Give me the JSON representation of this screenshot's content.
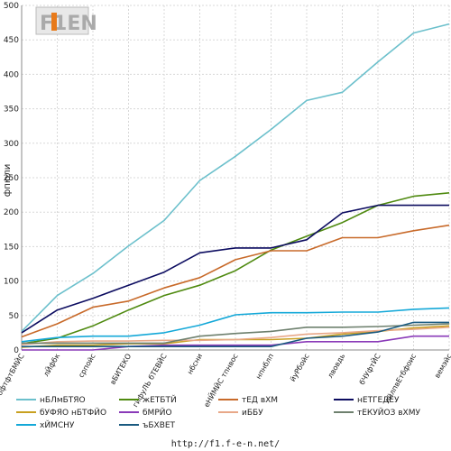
{
  "chart_data": {
    "type": "line",
    "xlabel": "",
    "ylabel": "фпюли",
    "ylim": [
      0,
      500
    ],
    "yticks": [
      0,
      50,
      100,
      150,
      200,
      250,
      300,
      350,
      400,
      450,
      500
    ],
    "grid": true,
    "legend_position": "bottom",
    "categories": [
      "бфтфтБМЙС",
      "лЙфбк",
      "српойс",
      "вБИТЕКО",
      "гйфуЛЬ бТЕВЙС",
      "нбсни",
      "еНЙМЙС тпнвос",
      "нпнблп",
      "йуРбойс",
      "лвовдь",
      "бЧУфтЙС",
      "лйлпвЕтбфоис",
      "вемэйс"
    ],
    "series": [
      {
        "name": "нБЛмБТЯО",
        "color": "#6cc0cc",
        "values": [
          27,
          79,
          111,
          151,
          188,
          246,
          281,
          320,
          362,
          374,
          418,
          460,
          473
        ]
      },
      {
        "name": "жЕТБТЙ",
        "color": "#4f8a10",
        "values": [
          9,
          17,
          35,
          58,
          79,
          94,
          115,
          145,
          165,
          185,
          210,
          223,
          228
        ]
      },
      {
        "name": "тЕД вХМ",
        "color": "#c86a2a",
        "values": [
          19,
          38,
          62,
          71,
          90,
          105,
          131,
          144,
          144,
          163,
          163,
          173,
          181
        ]
      },
      {
        "name": "нЕТГЕДЕУ",
        "color": "#0c0c60",
        "values": [
          25,
          58,
          75,
          94,
          113,
          141,
          148,
          148,
          160,
          199,
          210,
          210,
          210
        ]
      },
      {
        "name": "бУФЯО нБТФЙО",
        "color": "#c8a020",
        "values": [
          4,
          7,
          7,
          9,
          9,
          15,
          15,
          15,
          17,
          23,
          27,
          32,
          35
        ]
      },
      {
        "name": "бМРЙО",
        "color": "#8a3ab8",
        "values": [
          0,
          0,
          0,
          5,
          7,
          7,
          7,
          7,
          12,
          12,
          12,
          20,
          20
        ]
      },
      {
        "name": "иББУ",
        "color": "#e8a888",
        "values": [
          8,
          12,
          13,
          13,
          14,
          14,
          15,
          18,
          23,
          25,
          28,
          30,
          33
        ]
      },
      {
        "name": "тЕКУЙОЗ вХМУ",
        "color": "#6e806e",
        "values": [
          10,
          10,
          10,
          10,
          10,
          20,
          24,
          27,
          33,
          33,
          34,
          36,
          38
        ]
      },
      {
        "name": "хЙМСНУ",
        "color": "#14a8d8",
        "values": [
          12,
          18,
          20,
          20,
          25,
          36,
          51,
          54,
          54,
          55,
          55,
          59,
          61
        ]
      },
      {
        "name": "ъБХВЕТ",
        "color": "#1a5a80",
        "values": [
          5,
          5,
          5,
          5,
          5,
          5,
          5,
          5,
          17,
          20,
          26,
          40,
          40
        ]
      }
    ]
  },
  "logo": {
    "text": "F1EN"
  },
  "footer": {
    "url": "http://f1.f-e-n.net/"
  }
}
